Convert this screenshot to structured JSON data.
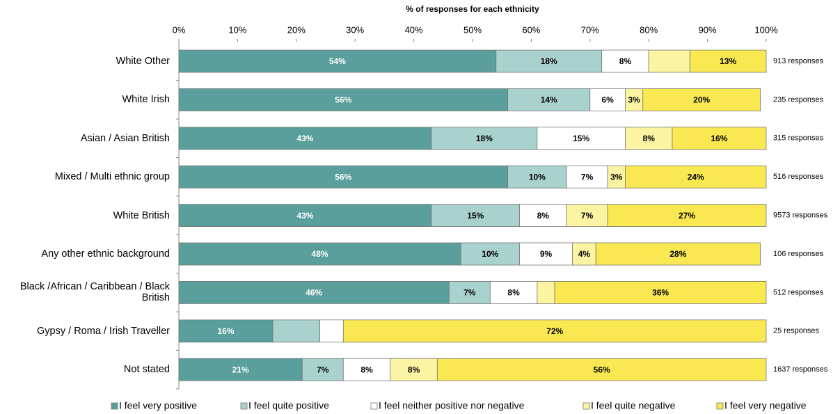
{
  "chart_data": {
    "type": "stacked-bar-horizontal",
    "title": "% of responses for each ethnicity",
    "categories": [
      "White Other",
      "White Irish",
      "Asian / Asian British",
      "Mixed / Multi ethnic group",
      "White British",
      "Any other ethnic background",
      "Black /African / Caribbean / Black British",
      "Gypsy / Roma / Irish Traveller",
      "Not stated"
    ],
    "responses": [
      "913 responses",
      "235 responses",
      "315 responses",
      "516 responses",
      "9573 responses",
      "106 responses",
      "512 responses",
      "25 responses",
      "1637 responses"
    ],
    "series": [
      {
        "name": "I feel very positive",
        "color": "#5a9f9b",
        "label_color": "#ffffff",
        "values": [
          54,
          56,
          43,
          56,
          43,
          48,
          46,
          16,
          21
        ],
        "value_labels": [
          "54%",
          "56%",
          "43%",
          "56%",
          "43%",
          "48%",
          "46%",
          "16%",
          "21%"
        ]
      },
      {
        "name": "I feel quite positive",
        "color": "#a9d1ce",
        "label_color": "#000000",
        "values": [
          18,
          14,
          18,
          10,
          15,
          10,
          7,
          8,
          7
        ],
        "value_labels": [
          "18%",
          "14%",
          "18%",
          "10%",
          "15%",
          "10%",
          "7%",
          null,
          "7%"
        ]
      },
      {
        "name": "I feel neither positive nor negative",
        "color": "#ffffff",
        "label_color": "#000000",
        "values": [
          8,
          6,
          15,
          7,
          8,
          9,
          8,
          4,
          8
        ],
        "value_labels": [
          "8%",
          "6%",
          "15%",
          "7%",
          "8%",
          "9%",
          "8%",
          null,
          "8%"
        ]
      },
      {
        "name": "I feel quite negative",
        "color": "#fbf4a2",
        "label_color": "#000000",
        "values": [
          7,
          3,
          8,
          3,
          7,
          4,
          3,
          0,
          8
        ],
        "value_labels": [
          null,
          "3%",
          "8%",
          "3%",
          "7%",
          "4%",
          null,
          null,
          "8%"
        ]
      },
      {
        "name": "I feel very negative",
        "color": "#f9e851",
        "label_color": "#000000",
        "values": [
          13,
          20,
          16,
          24,
          27,
          28,
          36,
          72,
          56
        ],
        "value_labels": [
          "13%",
          "20%",
          "16%",
          "24%",
          "27%",
          "28%",
          "36%",
          "72%",
          "56%"
        ]
      }
    ],
    "xlim": [
      0,
      100
    ],
    "xticks": [
      {
        "value": 0,
        "label": "0%"
      },
      {
        "value": 10,
        "label": "10%"
      },
      {
        "value": 20,
        "label": "20%"
      },
      {
        "value": 30,
        "label": "30%"
      },
      {
        "value": 40,
        "label": "40%"
      },
      {
        "value": 50,
        "label": "50%"
      },
      {
        "value": 60,
        "label": "60%"
      },
      {
        "value": 70,
        "label": "70%"
      },
      {
        "value": 80,
        "label": "80%"
      },
      {
        "value": 90,
        "label": "90%"
      },
      {
        "value": 100,
        "label": "100%"
      }
    ],
    "legend": "bottom",
    "grid": false
  }
}
